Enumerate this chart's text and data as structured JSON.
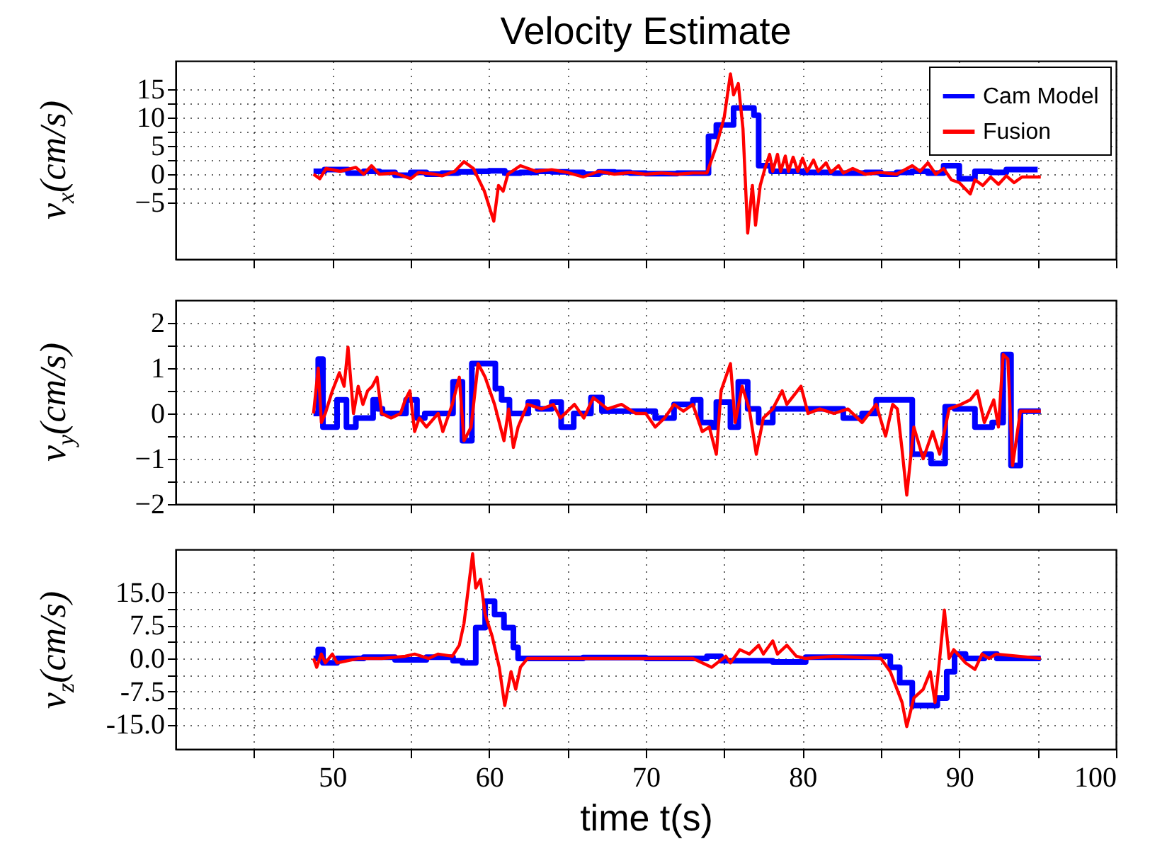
{
  "chart_data": [
    {
      "type": "line",
      "title": "Velocity Estimate",
      "ylabel": "v$_{x}$(cm/s)",
      "xlim": [
        40,
        100
      ],
      "ylim": [
        -15,
        20
      ],
      "xticks": [
        {
          "value": 45,
          "label": null
        },
        50,
        {
          "value": 55,
          "label": null
        },
        60,
        {
          "value": 65,
          "label": null
        },
        70,
        {
          "value": 75,
          "label": null
        },
        80,
        {
          "value": 85,
          "label": null
        },
        90,
        {
          "value": 95,
          "label": null
        },
        100
      ],
      "yticks": [
        -5,
        {
          "value": -2.5,
          "label": null
        },
        0,
        {
          "value": 2.5,
          "label": null
        },
        5,
        {
          "value": 7.5,
          "label": null
        },
        10,
        {
          "value": 12.5,
          "label": null
        },
        15
      ],
      "grid": true,
      "legend": "top right",
      "tick_labels": "y",
      "series": [
        {
          "name": "Cam Model",
          "color": "#0000ff",
          "type": "step",
          "x": [
            48.8,
            49.5,
            51,
            52,
            53,
            54,
            55,
            56,
            57,
            58,
            59,
            60,
            61,
            62,
            63,
            64,
            65,
            66,
            67,
            68,
            69,
            70,
            71,
            72,
            73,
            74.0,
            74.5,
            75.0,
            75.6,
            76.9,
            77.2,
            78,
            80,
            82,
            84,
            85,
            86,
            87,
            88,
            89,
            90,
            91,
            92,
            93,
            94,
            95
          ],
          "values": [
            0.5,
            0.8,
            0.2,
            0.5,
            0.3,
            -0.2,
            0.3,
            0.0,
            0.2,
            0.4,
            0.5,
            0.6,
            0.2,
            0.3,
            0.5,
            0.4,
            0.3,
            0.0,
            0.4,
            0.3,
            0.2,
            0.1,
            0.1,
            0.2,
            0.2,
            6.7,
            8.7,
            8.7,
            11.7,
            10.4,
            1.5,
            0.5,
            0.3,
            0.2,
            0.3,
            0.0,
            0.3,
            0.5,
            0.2,
            1.5,
            -0.8,
            0.5,
            0.3,
            0.8,
            0.8,
            0.8
          ]
        },
        {
          "name": "Fusion",
          "color": "#ff0000",
          "type": "line",
          "x": [
            48.8,
            49.2,
            49.6,
            50.5,
            51.5,
            52,
            52.5,
            53,
            54,
            55,
            55.5,
            56.5,
            57,
            57.8,
            58.4,
            59,
            59.7,
            60.3,
            60.6,
            60.9,
            61.2,
            62,
            63,
            64,
            65,
            66,
            67,
            68,
            69,
            70,
            71,
            72,
            73,
            73.9,
            74.5,
            75,
            75.4,
            75.6,
            75.9,
            76.2,
            76.5,
            76.8,
            77,
            77.3,
            77.6,
            77.9,
            78.1,
            78.4,
            78.6,
            78.9,
            79.1,
            79.4,
            79.7,
            80,
            80.3,
            80.7,
            81,
            81.5,
            81.8,
            82.3,
            82.6,
            83.2,
            84,
            85,
            86,
            87,
            87.5,
            88,
            88.5,
            89,
            89.5,
            90,
            90.7,
            91,
            91.5,
            92,
            92.5,
            93,
            93.5,
            94,
            95.2
          ],
          "values": [
            0,
            -0.8,
            1,
            0.5,
            1.2,
            0,
            1.5,
            0,
            0.2,
            -0.8,
            0.3,
            0,
            -0.3,
            0.5,
            2.2,
            1,
            -3,
            -8.3,
            -2,
            -3,
            0,
            1.5,
            0.5,
            0.8,
            0.3,
            -0.5,
            0.5,
            0,
            0.3,
            0,
            0.2,
            0,
            0.2,
            0.2,
            5,
            10,
            17.7,
            14,
            16,
            8,
            -10.4,
            -2,
            -9,
            -2,
            1,
            3.5,
            0.5,
            3.5,
            0.5,
            3.2,
            0.5,
            3,
            0.5,
            2.8,
            0.5,
            2.5,
            0.5,
            2,
            0.3,
            1.5,
            0.2,
            1,
            0,
            0.3,
            0,
            1.5,
            0.5,
            2,
            0,
            1,
            -1,
            -1.5,
            -3.5,
            -1,
            -2,
            -0.5,
            -1.8,
            -0.3,
            -1.5,
            -0.5,
            -0.5
          ]
        }
      ]
    },
    {
      "type": "line",
      "ylabel": "v$_{y}$(cm/s)",
      "xlim": [
        40,
        100
      ],
      "ylim": [
        -2,
        2.5
      ],
      "xticks": [
        {
          "value": 45,
          "label": null
        },
        50,
        {
          "value": 55,
          "label": null
        },
        60,
        {
          "value": 65,
          "label": null
        },
        70,
        {
          "value": 75,
          "label": null
        },
        80,
        {
          "value": 85,
          "label": null
        },
        90,
        {
          "value": 95,
          "label": null
        },
        100
      ],
      "yticks": [
        -2,
        {
          "value": -1.5,
          "label": null
        },
        -1,
        {
          "value": -0.5,
          "label": null
        },
        0,
        {
          "value": 0.5,
          "label": null
        },
        1,
        {
          "value": 1.5,
          "label": null
        },
        2
      ],
      "grid": true,
      "tick_labels": "y",
      "series": [
        {
          "color": "#0000ff",
          "type": "step",
          "x": [
            48.8,
            49.1,
            49.4,
            50.0,
            50.3,
            50.9,
            51.5,
            52.6,
            52.9,
            53.2,
            54.7,
            55.4,
            55.9,
            57.1,
            57.7,
            58.3,
            58.9,
            60.4,
            60.8,
            61.3,
            62.5,
            63.1,
            64.0,
            64.6,
            65.4,
            66.5,
            67.2,
            69.7,
            70.6,
            71.8,
            73.0,
            73.5,
            74.2,
            74.5,
            75.4,
            75.9,
            76.5,
            77.2,
            78.1,
            79.9,
            82.6,
            83.8,
            84.7,
            86.4,
            87.0,
            88.2,
            89.1,
            89.7,
            91.0,
            92.1,
            92.8,
            93.3,
            93.9,
            95.2
          ],
          "values": [
            0,
            1.2,
            -0.3,
            -0.3,
            0.3,
            -0.3,
            -0.1,
            0.3,
            0.1,
            0,
            0.3,
            -0.1,
            0,
            0,
            0.7,
            -0.6,
            1.1,
            0.55,
            0.3,
            0,
            0.25,
            0.1,
            0.25,
            -0.3,
            0,
            0.35,
            0.05,
            0.05,
            -0.1,
            0.2,
            0.3,
            -0.2,
            -0.3,
            0.25,
            -0.3,
            0.7,
            0.1,
            -0.2,
            0.1,
            0.1,
            -0.1,
            0,
            0.3,
            0.3,
            -0.9,
            -1.1,
            0.15,
            0.1,
            -0.3,
            -0.2,
            1.3,
            -1.15,
            0.05,
            0.05
          ]
        },
        {
          "color": "#ff0000",
          "type": "line",
          "x": [
            48.8,
            49.1,
            49.3,
            49.55,
            50.0,
            50.45,
            50.75,
            51.0,
            51.35,
            51.65,
            51.95,
            52.25,
            52.55,
            52.85,
            53.15,
            53.75,
            54.35,
            54.65,
            54.95,
            55.25,
            55.55,
            56.0,
            56.75,
            57.05,
            57.65,
            58.1,
            58.4,
            58.85,
            59.3,
            59.75,
            60.35,
            60.95,
            61.25,
            61.55,
            61.85,
            62.45,
            63.35,
            64.1,
            64.55,
            65.45,
            66.05,
            66.65,
            67.55,
            68.45,
            69.35,
            70.0,
            70.6,
            71.2,
            71.8,
            72.4,
            73.0,
            73.6,
            74.05,
            74.5,
            74.8,
            75.4,
            75.7,
            76.15,
            76.6,
            77.05,
            77.5,
            78.1,
            78.7,
            79.0,
            79.45,
            79.9,
            80.35,
            81.1,
            82.0,
            82.9,
            83.8,
            84.7,
            85.3,
            85.75,
            86.05,
            86.35,
            86.65,
            87.1,
            87.7,
            88.3,
            88.75,
            89.35,
            90.1,
            90.7,
            91.15,
            91.6,
            92.2,
            92.5,
            92.8,
            93.1,
            93.4,
            93.9,
            95.2
          ],
          "values": [
            0,
            1.0,
            -0.2,
            0,
            0.5,
            0.9,
            0.6,
            1.46,
            0,
            0.6,
            0.2,
            0.5,
            0.6,
            0.8,
            0,
            -0.1,
            0,
            0.3,
            0.5,
            -0.4,
            -0.1,
            -0.3,
            0,
            -0.4,
            0.2,
            0.8,
            -0.6,
            -0.3,
            1.1,
            0.8,
            0.2,
            -0.6,
            0.1,
            -0.75,
            -0.3,
            0.2,
            0.1,
            0.2,
            -0.1,
            0.2,
            -0.1,
            0.35,
            0.1,
            0.2,
            0,
            0,
            -0.3,
            -0.1,
            0.2,
            0.05,
            0.2,
            -0.4,
            -0.3,
            -0.9,
            0.5,
            1.1,
            -0.2,
            0.6,
            0.1,
            -0.9,
            -0.1,
            0.1,
            0.5,
            0.2,
            0.4,
            0.6,
            0,
            0.1,
            0,
            0.1,
            -0.2,
            0.2,
            -0.5,
            0.2,
            0.1,
            -0.8,
            -1.8,
            -0.3,
            -1.0,
            -0.4,
            -0.9,
            0.1,
            0.2,
            0.3,
            0.5,
            -0.2,
            0.3,
            -0.3,
            1.3,
            1.2,
            -1.15,
            0.05,
            0.05
          ]
        }
      ]
    },
    {
      "type": "line",
      "ylabel": "v$_{z}$(cm/s)",
      "xlabel": "time t(s)",
      "xlim": [
        40,
        100
      ],
      "ylim": [
        -20.6,
        24.8
      ],
      "xticks": [
        {
          "value": 45,
          "label": null
        },
        50,
        {
          "value": 55,
          "label": null
        },
        60,
        {
          "value": 65,
          "label": null
        },
        70,
        {
          "value": 75,
          "label": null
        },
        80,
        {
          "value": 85,
          "label": null
        },
        90,
        {
          "value": 95,
          "label": null
        },
        100
      ],
      "yticks": [
        {
          "value": -15,
          "label": "-15.0"
        },
        {
          "value": -11.25,
          "label": null
        },
        {
          "value": -7.5,
          "label": "-7.5"
        },
        {
          "value": -3.75,
          "label": null
        },
        {
          "value": 0,
          "label": "0.0"
        },
        {
          "value": 3.75,
          "label": null
        },
        {
          "value": 7.5,
          "label": "7.5"
        },
        {
          "value": 11.25,
          "label": null
        },
        {
          "value": 15,
          "label": "15.0"
        }
      ],
      "grid": true,
      "series": [
        {
          "color": "#0000ff",
          "type": "step",
          "x": [
            48.8,
            49.1,
            49.4,
            50.0,
            50.3,
            52,
            54,
            56,
            57.7,
            58.3,
            59.15,
            59.75,
            60.35,
            60.95,
            61.55,
            61.85,
            66,
            70,
            73.9,
            74.8,
            78.1,
            80.2,
            85.0,
            85.6,
            86.2,
            87.0,
            88.0,
            88.6,
            89.2,
            89.7,
            90.4,
            91.6,
            92.4,
            95.2
          ],
          "values": [
            0,
            2,
            -1,
            -1,
            0,
            0.3,
            -0.3,
            0.3,
            -0.5,
            -1,
            7,
            13,
            10,
            7,
            2.5,
            0,
            0.2,
            0,
            0.5,
            -0.5,
            -0.8,
            0.3,
            0.5,
            -2,
            -5.5,
            -10.7,
            -10.7,
            -9,
            -3,
            1,
            0,
            1,
            0,
            0
          ]
        },
        {
          "color": "#ff0000",
          "type": "line",
          "x": [
            48.8,
            49.0,
            49.3,
            49.55,
            50.0,
            50.3,
            51.65,
            53.15,
            54.65,
            55.25,
            56.15,
            56.75,
            57.65,
            58.1,
            58.4,
            58.95,
            59.15,
            59.45,
            59.75,
            60.2,
            60.65,
            61.0,
            61.4,
            61.7,
            62.0,
            62.45,
            70.0,
            73.0,
            74.2,
            75.1,
            75.4,
            76.0,
            76.6,
            77.2,
            77.5,
            78.1,
            78.4,
            79.0,
            79.6,
            80.2,
            82.0,
            85.0,
            85.6,
            86.35,
            86.65,
            87.1,
            87.7,
            88.15,
            88.45,
            88.75,
            89.05,
            89.35,
            89.65,
            90.4,
            91.0,
            91.45,
            91.9,
            92.35,
            95.2
          ],
          "values": [
            0,
            -2,
            1,
            -1,
            1,
            -1,
            0,
            0,
            0.5,
            1,
            0,
            1,
            0.5,
            3,
            8,
            23.8,
            16,
            18,
            10,
            5,
            -2,
            -10.7,
            -3,
            -7,
            -2,
            0,
            0,
            0,
            -2,
            0.5,
            -1,
            2,
            1,
            3,
            1,
            4,
            1,
            3,
            0.5,
            0,
            0.5,
            0,
            -3,
            -10,
            -15.5,
            -9,
            -7,
            -3,
            -10,
            0,
            11,
            0,
            2,
            -1,
            -2.5,
            1,
            0,
            1,
            0
          ]
        }
      ]
    }
  ]
}
